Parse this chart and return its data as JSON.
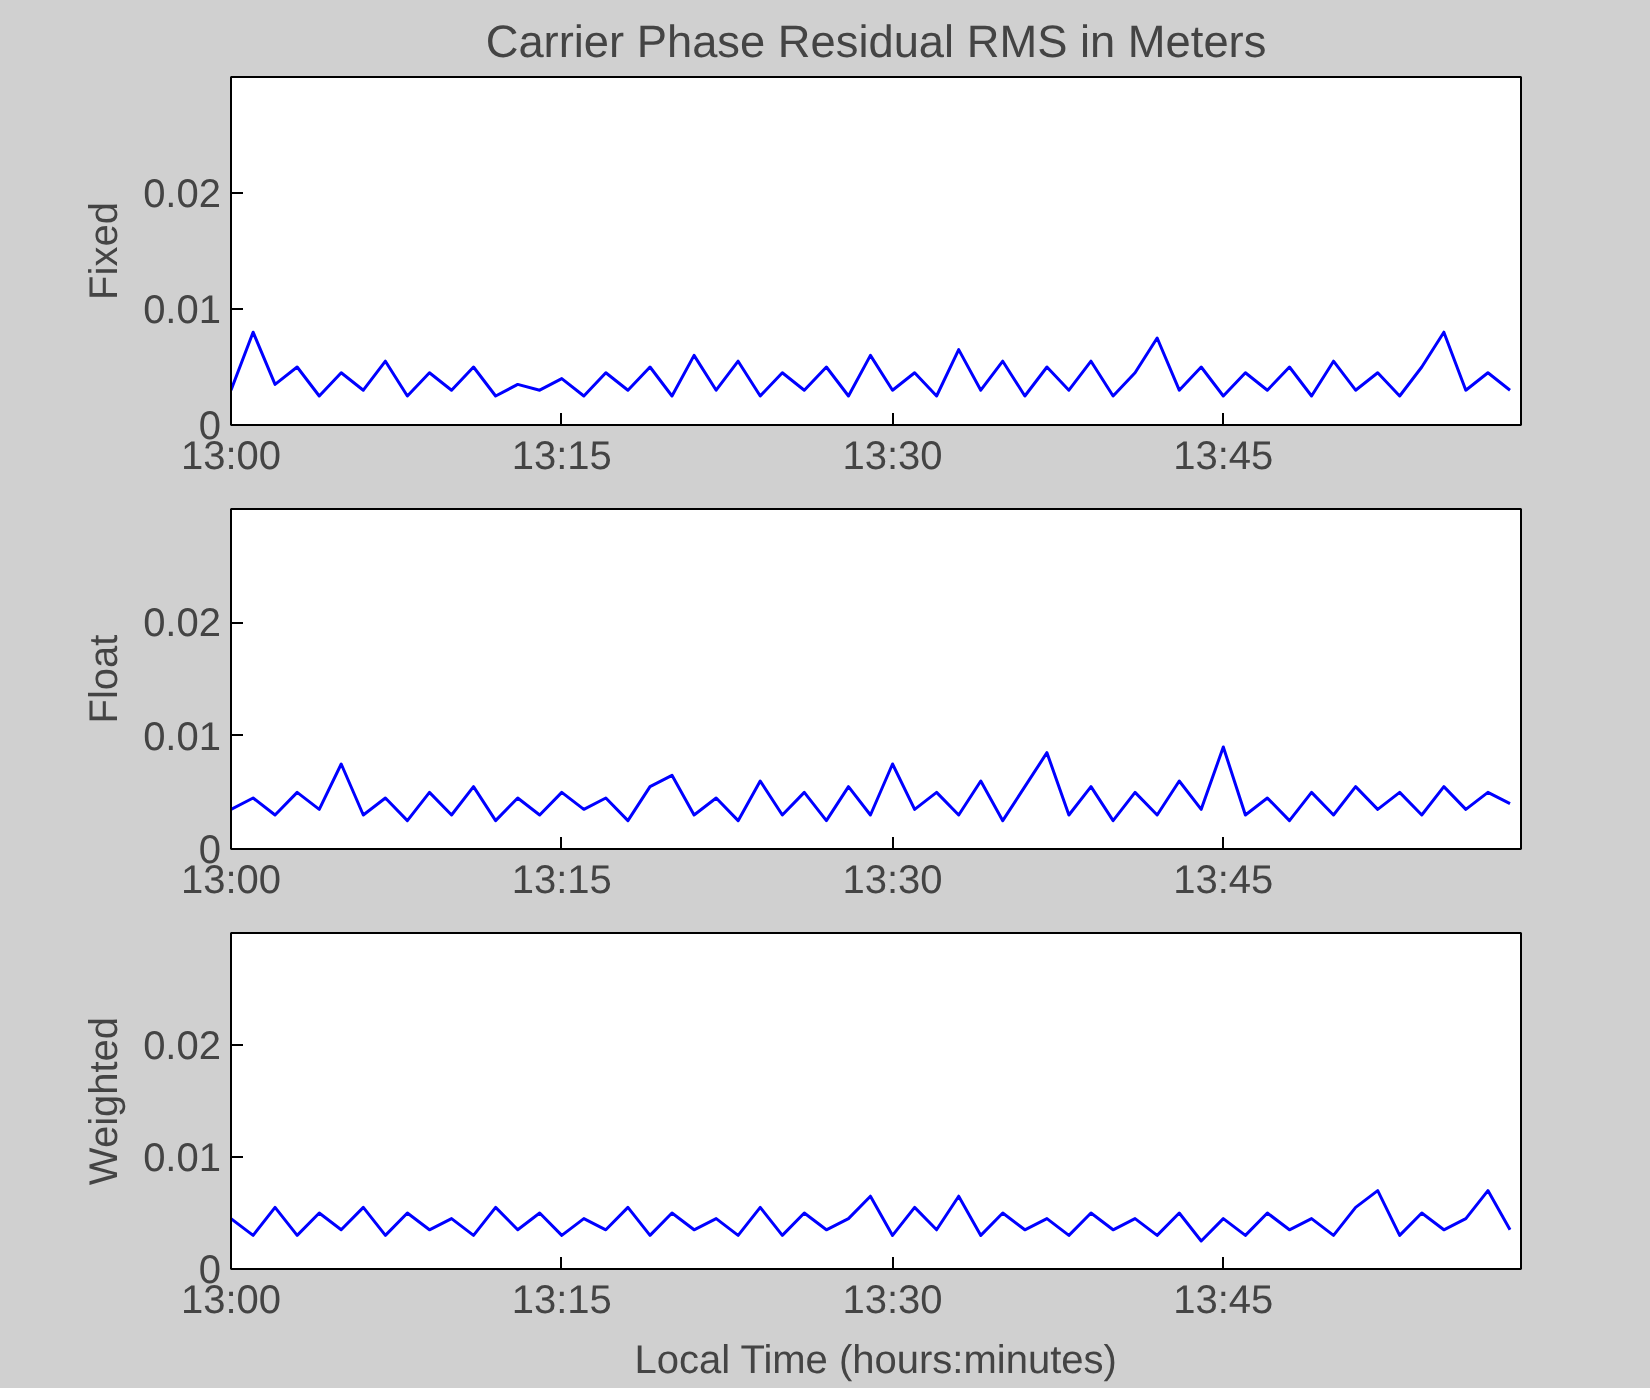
{
  "chart_data": [
    {
      "type": "line",
      "title": "Carrier Phase Residual RMS in Meters",
      "ylabel": "Fixed",
      "grid": false,
      "xlim": [
        13,
        13.975
      ],
      "ylim": [
        0,
        0.03
      ],
      "xticks": [
        {
          "value": 13,
          "label": "13:00"
        },
        {
          "value": 13.25,
          "label": "13:15"
        },
        {
          "value": 13.5,
          "label": "13:30"
        },
        {
          "value": 13.75,
          "label": "13:45"
        }
      ],
      "yticks": [
        0,
        0.01,
        0.02
      ],
      "x": [
        13,
        13.0167,
        13.0333,
        13.05,
        13.0667,
        13.0833,
        13.1,
        13.1167,
        13.1333,
        13.15,
        13.1667,
        13.1833,
        13.2,
        13.2167,
        13.2333,
        13.25,
        13.2667,
        13.2833,
        13.3,
        13.3167,
        13.3333,
        13.35,
        13.3667,
        13.3833,
        13.4,
        13.4167,
        13.4333,
        13.45,
        13.4667,
        13.4833,
        13.5,
        13.5167,
        13.5333,
        13.55,
        13.5667,
        13.5833,
        13.6,
        13.6167,
        13.6333,
        13.65,
        13.6667,
        13.6833,
        13.7,
        13.7167,
        13.7333,
        13.75,
        13.7667,
        13.7833,
        13.8,
        13.8167,
        13.8333,
        13.85,
        13.8667,
        13.8833,
        13.9,
        13.9167,
        13.9333,
        13.95,
        13.9667
      ],
      "series": [
        {
          "color": "#0000ff",
          "values": [
            0.003,
            0.008,
            0.0035,
            0.005,
            0.0025,
            0.0045,
            0.003,
            0.0055,
            0.0025,
            0.0045,
            0.003,
            0.005,
            0.0025,
            0.0035,
            0.003,
            0.004,
            0.0025,
            0.0045,
            0.003,
            0.005,
            0.0025,
            0.006,
            0.003,
            0.0055,
            0.0025,
            0.0045,
            0.003,
            0.005,
            0.0025,
            0.006,
            0.003,
            0.0045,
            0.0025,
            0.0065,
            0.003,
            0.0055,
            0.0025,
            0.005,
            0.003,
            0.0055,
            0.0025,
            0.0045,
            0.0075,
            0.003,
            0.005,
            0.0025,
            0.0045,
            0.003,
            0.005,
            0.0025,
            0.0055,
            0.003,
            0.0045,
            0.0025,
            0.005,
            0.008,
            0.003,
            0.0045,
            0.003
          ]
        }
      ]
    },
    {
      "type": "line",
      "ylabel": "Float",
      "grid": false,
      "xlim": [
        13,
        13.975
      ],
      "ylim": [
        0,
        0.03
      ],
      "xticks": [
        {
          "value": 13,
          "label": "13:00"
        },
        {
          "value": 13.25,
          "label": "13:15"
        },
        {
          "value": 13.5,
          "label": "13:30"
        },
        {
          "value": 13.75,
          "label": "13:45"
        }
      ],
      "yticks": [
        0,
        0.01,
        0.02
      ],
      "x": [
        13,
        13.0167,
        13.0333,
        13.05,
        13.0667,
        13.0833,
        13.1,
        13.1167,
        13.1333,
        13.15,
        13.1667,
        13.1833,
        13.2,
        13.2167,
        13.2333,
        13.25,
        13.2667,
        13.2833,
        13.3,
        13.3167,
        13.3333,
        13.35,
        13.3667,
        13.3833,
        13.4,
        13.4167,
        13.4333,
        13.45,
        13.4667,
        13.4833,
        13.5,
        13.5167,
        13.5333,
        13.55,
        13.5667,
        13.5833,
        13.6,
        13.6167,
        13.6333,
        13.65,
        13.6667,
        13.6833,
        13.7,
        13.7167,
        13.7333,
        13.75,
        13.7667,
        13.7833,
        13.8,
        13.8167,
        13.8333,
        13.85,
        13.8667,
        13.8833,
        13.9,
        13.9167,
        13.9333,
        13.95,
        13.9667
      ],
      "series": [
        {
          "color": "#0000ff",
          "values": [
            0.0035,
            0.0045,
            0.003,
            0.005,
            0.0035,
            0.0075,
            0.003,
            0.0045,
            0.0025,
            0.005,
            0.003,
            0.0055,
            0.0025,
            0.0045,
            0.003,
            0.005,
            0.0035,
            0.0045,
            0.0025,
            0.0055,
            0.0065,
            0.003,
            0.0045,
            0.0025,
            0.006,
            0.003,
            0.005,
            0.0025,
            0.0055,
            0.003,
            0.0075,
            0.0035,
            0.005,
            0.003,
            0.006,
            0.0025,
            0.0055,
            0.0085,
            0.003,
            0.0055,
            0.0025,
            0.005,
            0.003,
            0.006,
            0.0035,
            0.009,
            0.003,
            0.0045,
            0.0025,
            0.005,
            0.003,
            0.0055,
            0.0035,
            0.005,
            0.003,
            0.0055,
            0.0035,
            0.005,
            0.004
          ]
        }
      ]
    },
    {
      "type": "line",
      "ylabel": "Weighted",
      "xlabel": "Local Time (hours:minutes)",
      "grid": false,
      "xlim": [
        13,
        13.975
      ],
      "ylim": [
        0,
        0.03
      ],
      "xticks": [
        {
          "value": 13,
          "label": "13:00"
        },
        {
          "value": 13.25,
          "label": "13:15"
        },
        {
          "value": 13.5,
          "label": "13:30"
        },
        {
          "value": 13.75,
          "label": "13:45"
        }
      ],
      "yticks": [
        0,
        0.01,
        0.02
      ],
      "x": [
        13,
        13.0167,
        13.0333,
        13.05,
        13.0667,
        13.0833,
        13.1,
        13.1167,
        13.1333,
        13.15,
        13.1667,
        13.1833,
        13.2,
        13.2167,
        13.2333,
        13.25,
        13.2667,
        13.2833,
        13.3,
        13.3167,
        13.3333,
        13.35,
        13.3667,
        13.3833,
        13.4,
        13.4167,
        13.4333,
        13.45,
        13.4667,
        13.4833,
        13.5,
        13.5167,
        13.5333,
        13.55,
        13.5667,
        13.5833,
        13.6,
        13.6167,
        13.6333,
        13.65,
        13.6667,
        13.6833,
        13.7,
        13.7167,
        13.7333,
        13.75,
        13.7667,
        13.7833,
        13.8,
        13.8167,
        13.8333,
        13.85,
        13.8667,
        13.8833,
        13.9,
        13.9167,
        13.9333,
        13.95,
        13.9667
      ],
      "series": [
        {
          "color": "#0000ff",
          "values": [
            0.0045,
            0.003,
            0.0055,
            0.003,
            0.005,
            0.0035,
            0.0055,
            0.003,
            0.005,
            0.0035,
            0.0045,
            0.003,
            0.0055,
            0.0035,
            0.005,
            0.003,
            0.0045,
            0.0035,
            0.0055,
            0.003,
            0.005,
            0.0035,
            0.0045,
            0.003,
            0.0055,
            0.003,
            0.005,
            0.0035,
            0.0045,
            0.0065,
            0.003,
            0.0055,
            0.0035,
            0.0065,
            0.003,
            0.005,
            0.0035,
            0.0045,
            0.003,
            0.005,
            0.0035,
            0.0045,
            0.003,
            0.005,
            0.0025,
            0.0045,
            0.003,
            0.005,
            0.0035,
            0.0045,
            0.003,
            0.0055,
            0.007,
            0.003,
            0.005,
            0.0035,
            0.0045,
            0.007,
            0.0035
          ]
        }
      ]
    }
  ]
}
